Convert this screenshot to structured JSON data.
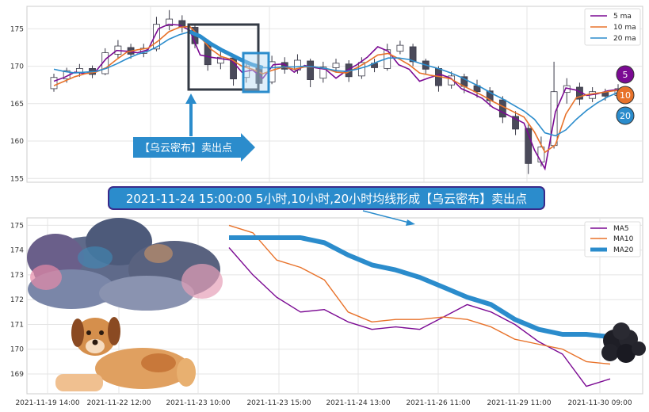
{
  "chart_data": [
    {
      "type": "candlestick",
      "yticks": [
        155,
        160,
        165,
        170,
        175
      ],
      "ylim": [
        154.5,
        178
      ],
      "grid": true,
      "legend_position": "top-right",
      "legend": [
        {
          "label": "5 ma",
          "color": "#7b0a93"
        },
        {
          "label": "10 ma",
          "color": "#e8722a"
        },
        {
          "label": "20 ma",
          "color": "#2b8ccc"
        }
      ],
      "annotation_label": "【乌云密布】卖出点",
      "badges": [
        {
          "text": "5",
          "color": "#7b0a93"
        },
        {
          "text": "10",
          "color": "#e8722a"
        },
        {
          "text": "20",
          "color": "#2b8ccc"
        }
      ],
      "series": [
        {
          "name": "5 ma",
          "color": "#7b0a93",
          "values": [
            168,
            168.5,
            169.2,
            169.0,
            169.3,
            171.0,
            172.1,
            172.0,
            171.8,
            172.2,
            175.0,
            175.6,
            175.5,
            174.8,
            171.5,
            171.2,
            171.0,
            170.8,
            169.2,
            169.5,
            168.4,
            170.2,
            170.3,
            169.2,
            170.1,
            169.8,
            169.6,
            168.4,
            169.4,
            170.2,
            171.2,
            172.6,
            172.0,
            170.2,
            169.6,
            168.0,
            168.5,
            168.9,
            168.4,
            167.0,
            166.4,
            165.7,
            164.5,
            163.8,
            163.1,
            162.4,
            158.8,
            156.3,
            163.9,
            167.1,
            166.8,
            166.1,
            166.3,
            166.7,
            166.9
          ]
        },
        {
          "name": "10 ma",
          "color": "#e8722a",
          "values": [
            167.4,
            168.0,
            168.6,
            169.0,
            169.2,
            169.8,
            170.9,
            171.9,
            172.2,
            172.4,
            173.4,
            174.6,
            175.2,
            175.3,
            173.9,
            172.3,
            171.3,
            170.9,
            170.0,
            169.6,
            169.0,
            169.5,
            169.9,
            169.6,
            169.9,
            169.9,
            169.7,
            169.2,
            169.1,
            169.8,
            170.6,
            171.5,
            171.7,
            171.0,
            170.2,
            169.1,
            168.8,
            168.6,
            168.3,
            167.5,
            166.8,
            166.1,
            165.3,
            164.6,
            163.9,
            163.2,
            161.2,
            158.5,
            159.5,
            163.6,
            165.8,
            166.2,
            166.4,
            166.6,
            166.8
          ]
        },
        {
          "name": "20 ma",
          "color": "#2b8ccc",
          "values": [
            169.6,
            169.3,
            169.1,
            169.2,
            169.3,
            169.7,
            170.3,
            171.0,
            171.6,
            172.0,
            172.7,
            173.6,
            174.2,
            174.6,
            174.0,
            173.0,
            172.2,
            171.5,
            170.8,
            170.2,
            169.8,
            169.8,
            169.9,
            169.9,
            170.0,
            169.9,
            169.7,
            169.4,
            169.3,
            169.6,
            170.0,
            170.6,
            171.1,
            171.1,
            170.9,
            170.4,
            170.0,
            169.6,
            169.1,
            168.5,
            167.8,
            167.1,
            166.3,
            165.6,
            164.8,
            164.0,
            162.9,
            161.1,
            160.7,
            161.5,
            162.9,
            164.1,
            165.1,
            165.9,
            166.5
          ]
        }
      ],
      "candles": [
        [
          167.0,
          168.5,
          166.6,
          169.0
        ],
        [
          168.3,
          169.4,
          167.8,
          169.8
        ],
        [
          169.2,
          169.7,
          168.6,
          170.3
        ],
        [
          169.7,
          168.9,
          168.4,
          170.1
        ],
        [
          169.0,
          171.8,
          168.8,
          172.4
        ],
        [
          171.6,
          172.7,
          171.0,
          173.5
        ],
        [
          172.5,
          171.6,
          171.0,
          173.0
        ],
        [
          171.7,
          172.4,
          171.2,
          173.0
        ],
        [
          172.3,
          175.6,
          172.0,
          176.6
        ],
        [
          175.4,
          176.3,
          174.8,
          177.5
        ],
        [
          176.1,
          175.2,
          174.5,
          176.8
        ],
        [
          175.2,
          173.0,
          172.4,
          175.5
        ],
        [
          173.1,
          170.2,
          169.4,
          173.6
        ],
        [
          170.4,
          171.2,
          169.6,
          172.4
        ],
        [
          171.1,
          168.3,
          167.4,
          171.6
        ],
        [
          168.5,
          170.0,
          167.8,
          170.8
        ],
        [
          169.8,
          167.7,
          167.0,
          170.4
        ],
        [
          167.9,
          170.6,
          167.6,
          171.4
        ],
        [
          170.5,
          169.6,
          169.0,
          171.2
        ],
        [
          169.5,
          170.8,
          169.0,
          171.6
        ],
        [
          170.7,
          168.2,
          167.2,
          171.0
        ],
        [
          168.4,
          169.9,
          167.8,
          170.6
        ],
        [
          169.8,
          170.4,
          169.2,
          171.0
        ],
        [
          170.3,
          168.6,
          167.9,
          170.8
        ],
        [
          168.7,
          170.5,
          168.3,
          171.2
        ],
        [
          170.4,
          169.8,
          169.2,
          171.0
        ],
        [
          169.7,
          172.2,
          169.4,
          173.0
        ],
        [
          172.0,
          172.8,
          171.6,
          173.4
        ],
        [
          172.6,
          170.6,
          170.0,
          173.0
        ],
        [
          170.7,
          169.6,
          168.9,
          171.0
        ],
        [
          169.7,
          167.4,
          166.6,
          170.0
        ],
        [
          167.5,
          168.7,
          167.0,
          169.3
        ],
        [
          168.6,
          167.3,
          166.4,
          169.0
        ],
        [
          167.4,
          166.6,
          165.8,
          168.2
        ],
        [
          166.7,
          165.4,
          164.6,
          167.2
        ],
        [
          165.5,
          163.2,
          162.4,
          166.0
        ],
        [
          163.3,
          161.6,
          160.8,
          164.0
        ],
        [
          161.7,
          157.0,
          155.6,
          162.2
        ],
        [
          157.2,
          159.2,
          156.6,
          160.6
        ],
        [
          159.4,
          166.6,
          159.0,
          170.6
        ],
        [
          166.5,
          167.4,
          165.0,
          168.4
        ],
        [
          167.2,
          165.6,
          164.8,
          167.8
        ],
        [
          165.7,
          166.6,
          165.2,
          167.2
        ],
        [
          166.5,
          166.0,
          165.4,
          167.0
        ],
        [
          166.1,
          167.0,
          165.8,
          167.6
        ]
      ]
    },
    {
      "type": "line",
      "yticks": [
        169,
        170,
        171,
        172,
        173,
        174,
        175
      ],
      "ylim": [
        168.2,
        175.3
      ],
      "grid": true,
      "legend_position": "top-right",
      "x_tick_labels": [
        "2021-11-19 14:00",
        "2021-11-22 12:00",
        "2021-11-23 10:00",
        "2021-11-23 15:00",
        "2021-11-24 13:00",
        "2021-11-26 11:00",
        "2021-11-29 11:00",
        "2021-11-30 09:00"
      ],
      "banner": "2021-11-24 15:00:00 5小时,10小时,20小时均线形成【乌云密布】卖出点",
      "series": [
        {
          "name": "MA5",
          "color": "#7b0a93",
          "x": [
            0,
            1,
            2,
            3,
            4,
            5,
            6,
            7,
            8,
            9,
            10,
            11,
            12,
            13,
            14,
            15,
            16
          ],
          "values": [
            174.1,
            173.0,
            172.1,
            171.5,
            171.6,
            171.1,
            170.8,
            170.9,
            170.8,
            171.3,
            171.8,
            171.5,
            171.0,
            170.3,
            169.8,
            168.5,
            168.8
          ]
        },
        {
          "name": "MA10",
          "color": "#e8722a",
          "x": [
            0,
            1,
            2,
            3,
            4,
            5,
            6,
            7,
            8,
            9,
            10,
            11,
            12,
            13,
            14,
            15,
            16
          ],
          "values": [
            175.0,
            174.7,
            173.6,
            173.3,
            172.8,
            171.5,
            171.1,
            171.2,
            171.2,
            171.3,
            171.2,
            170.9,
            170.4,
            170.2,
            170.0,
            169.5,
            169.4
          ]
        },
        {
          "name": "MA20",
          "color": "#2b8ccc",
          "x": [
            0,
            1,
            2,
            3,
            4,
            5,
            6,
            7,
            8,
            9,
            10,
            11,
            12,
            13,
            14,
            15,
            16
          ],
          "values": [
            174.5,
            174.5,
            174.5,
            174.5,
            174.3,
            173.8,
            173.4,
            173.2,
            172.9,
            172.5,
            172.1,
            171.8,
            171.2,
            170.8,
            170.6,
            170.6,
            170.5
          ]
        }
      ]
    }
  ],
  "colors": {
    "bull": "#ffffff",
    "bear": "#4a4a5a",
    "cloud": "#5f6a8a",
    "dog": "#e0a060"
  }
}
